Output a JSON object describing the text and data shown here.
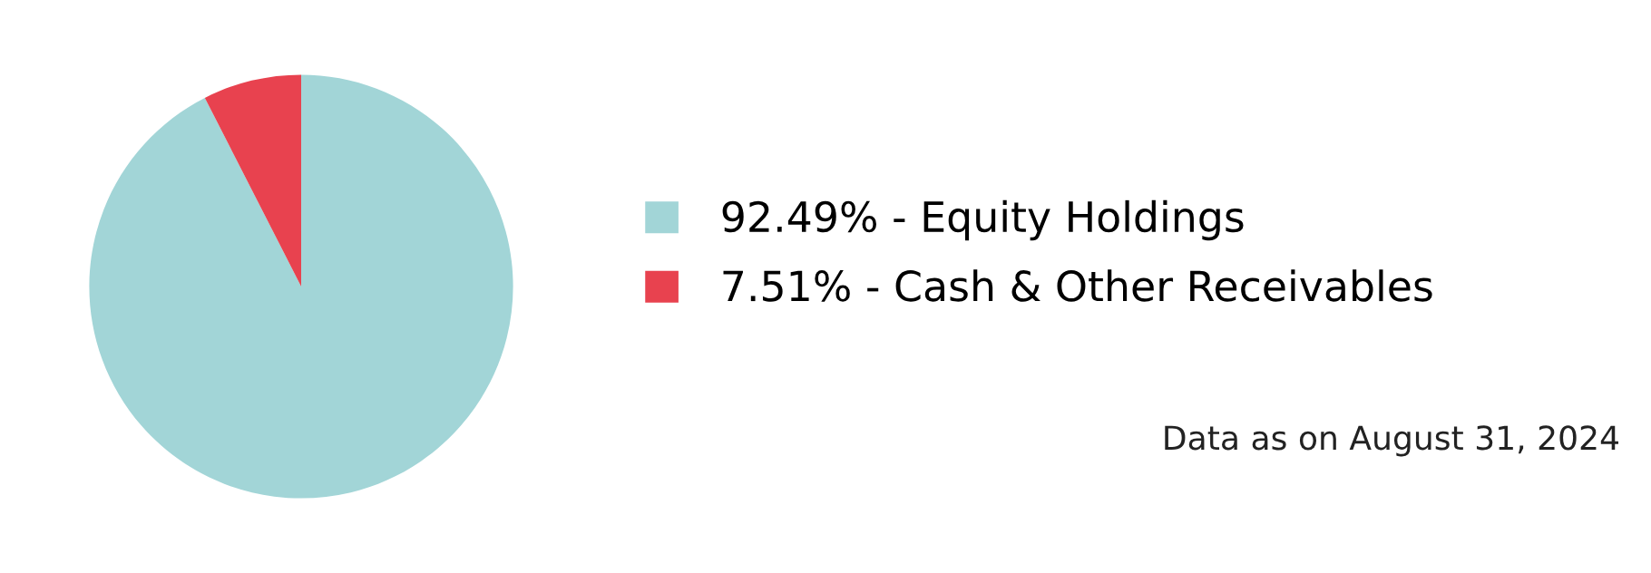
{
  "chart_data": {
    "type": "pie",
    "categories": [
      "92.49% - Equity Holdings",
      "7.51% - Cash & Other Receivables"
    ],
    "values": [
      92.49,
      7.51
    ],
    "colors": [
      "#a2d5d7",
      "#e8424f"
    ],
    "legend": "right",
    "annotations": [
      "Data as on August 31, 2024"
    ]
  }
}
